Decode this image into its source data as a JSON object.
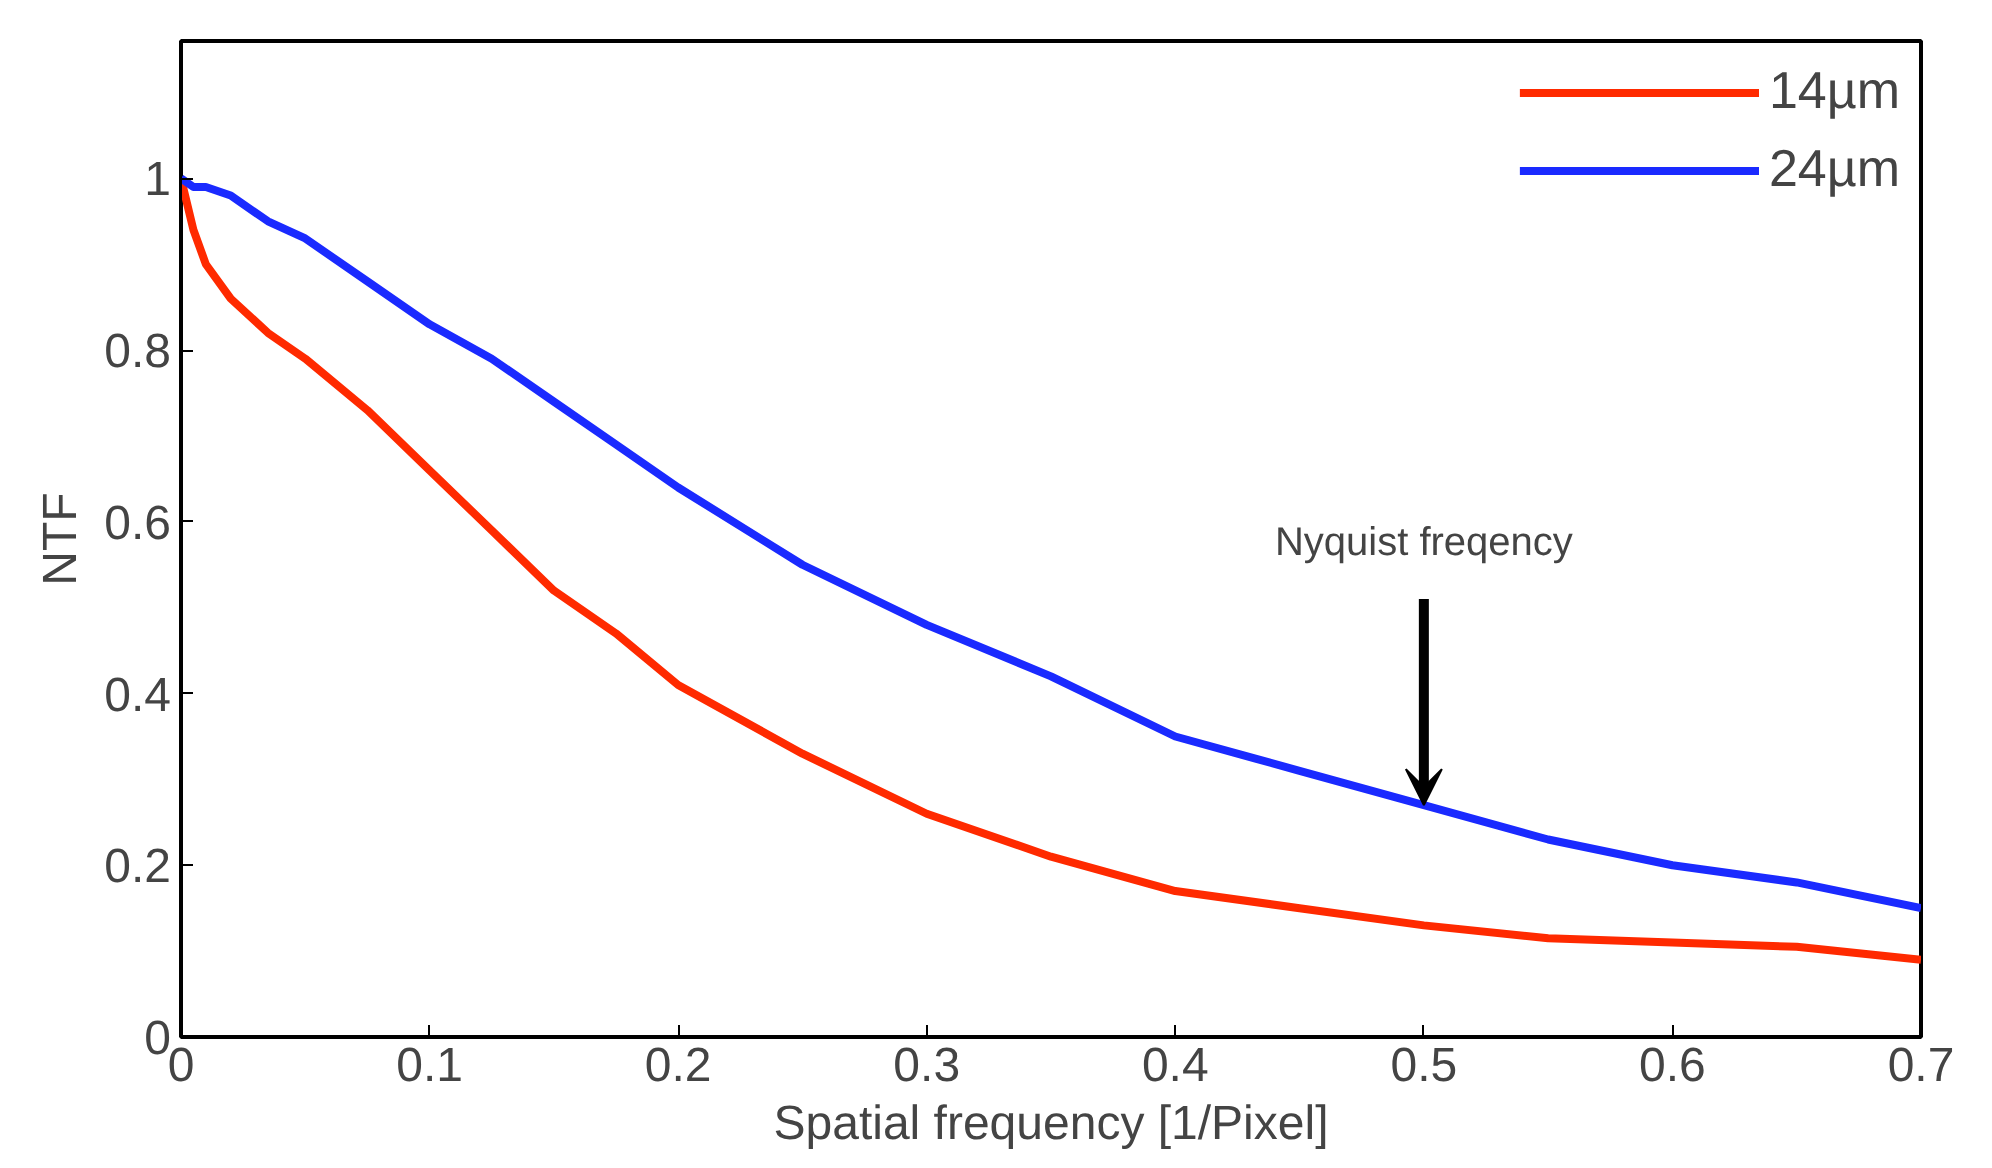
{
  "chart_data": {
    "type": "line",
    "xlabel": "Spatial frequency [1/Pixel]",
    "ylabel": "NTF",
    "x": [
      0,
      0.005,
      0.01,
      0.02,
      0.035,
      0.05,
      0.075,
      0.1,
      0.125,
      0.15,
      0.175,
      0.2,
      0.25,
      0.3,
      0.35,
      0.4,
      0.45,
      0.5,
      0.55,
      0.6,
      0.65,
      0.7
    ],
    "series": [
      {
        "name": "14µm",
        "color": "#ff2a00",
        "values": [
          1.0,
          0.94,
          0.9,
          0.86,
          0.82,
          0.79,
          0.73,
          0.66,
          0.59,
          0.52,
          0.47,
          0.41,
          0.33,
          0.26,
          0.21,
          0.17,
          0.15,
          0.13,
          0.115,
          0.11,
          0.105,
          0.09
        ]
      },
      {
        "name": "24µm",
        "color": "#1a2aff",
        "values": [
          1.0,
          0.99,
          0.99,
          0.98,
          0.95,
          0.93,
          0.88,
          0.83,
          0.79,
          0.74,
          0.69,
          0.64,
          0.55,
          0.48,
          0.42,
          0.35,
          0.31,
          0.27,
          0.23,
          0.2,
          0.18,
          0.15
        ]
      }
    ],
    "annotations": [
      {
        "text": "Nyquist freqency",
        "x": 0.5,
        "y": 0.27
      }
    ],
    "xlim": [
      0,
      0.7
    ],
    "ylim": [
      0,
      1.16
    ],
    "xticks": [
      0,
      0.1,
      0.2,
      0.3,
      0.4,
      0.5,
      0.6,
      0.7
    ],
    "yticks": [
      0,
      0.2,
      0.4,
      0.6,
      0.8,
      1
    ],
    "grid": false,
    "legend": "top right",
    "marker": "none",
    "line_style": "solid"
  }
}
